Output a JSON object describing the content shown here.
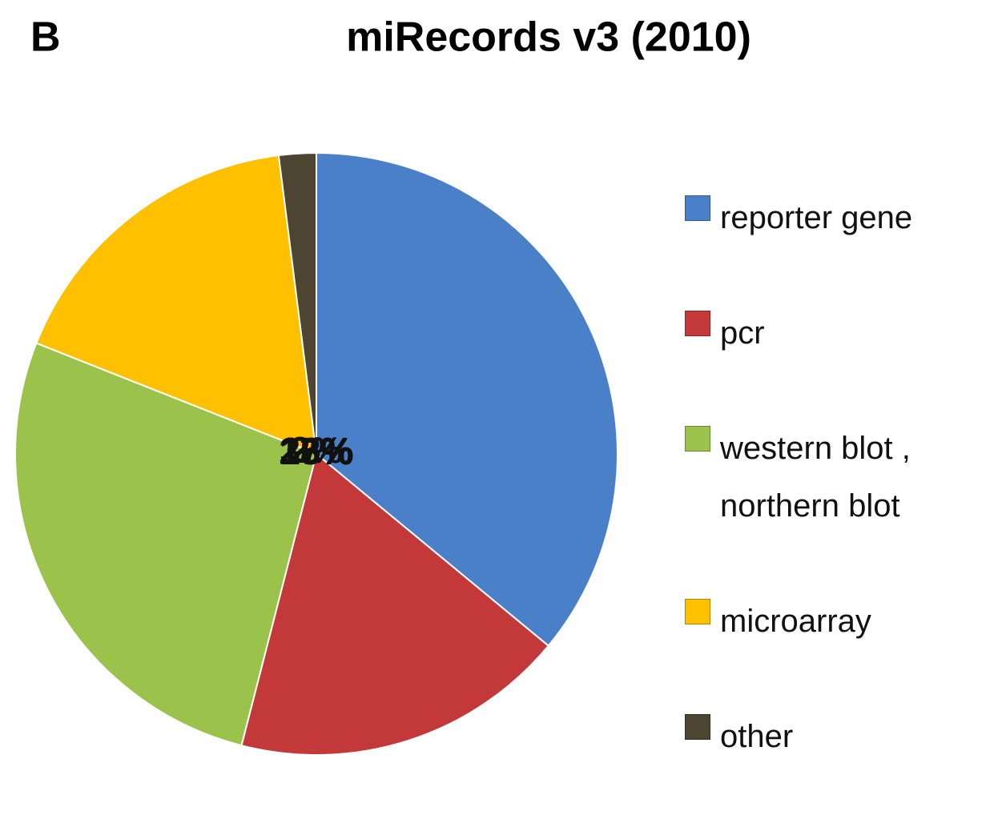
{
  "chart_data": {
    "type": "pie",
    "panel_label": "B",
    "title": "miRecords v3 (2010)",
    "categories": [
      "reporter gene",
      "pcr",
      "western blot , northern blot",
      "microarray",
      "other"
    ],
    "values": [
      36,
      18,
      27,
      17,
      2
    ],
    "value_labels": [
      "36%",
      "18%",
      "27%",
      "17%",
      "2%"
    ],
    "colors": [
      "#4a80c8",
      "#c3393a",
      "#9bc34c",
      "#ffc000",
      "#4d4432"
    ],
    "legend": "right"
  }
}
